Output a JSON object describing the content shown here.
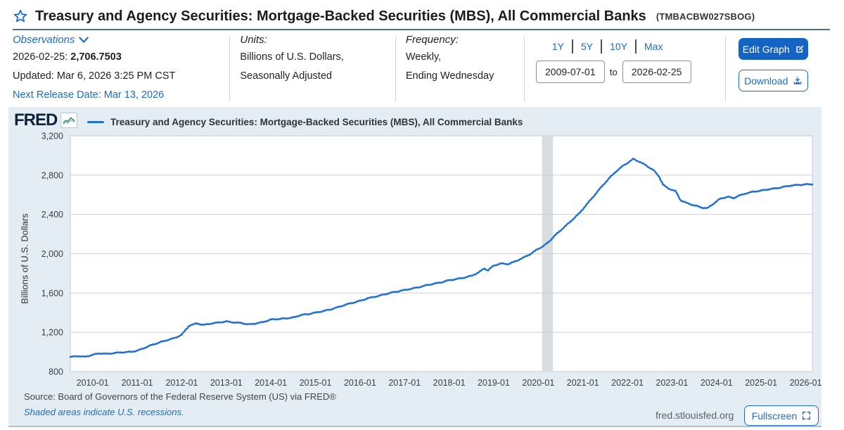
{
  "header": {
    "title": "Treasury and Agency Securities: Mortgage-Backed Securities (MBS), All Commercial Banks",
    "series_id": "(TMBACBW027SBOG)"
  },
  "meta": {
    "observations": {
      "label": "Observations",
      "latest_date": "2026-02-25:",
      "latest_value": "2,706.7503",
      "updated": "Updated: Mar 6, 2026 3:25 PM CST",
      "next_release": "Next Release Date: Mar 13, 2026"
    },
    "units": {
      "label": "Units:",
      "line1": "Billions of U.S. Dollars,",
      "line2": "Seasonally Adjusted"
    },
    "frequency": {
      "label": "Frequency:",
      "line1": "Weekly,",
      "line2": "Ending Wednesday"
    },
    "range": {
      "presets": [
        "1Y",
        "5Y",
        "10Y",
        "Max"
      ],
      "start": "2009-07-01",
      "to_label": "to",
      "end": "2026-02-25"
    },
    "actions": {
      "edit": "Edit Graph",
      "download": "Download"
    }
  },
  "graph": {
    "brand": "FRED",
    "legend": "Treasury and Agency Securities: Mortgage-Backed Securities (MBS), All Commercial Banks",
    "source": "Source: Board of Governors of the Federal Reserve System (US) via FRED®",
    "recession_note": "Shaded areas indicate U.S. recessions.",
    "site": "fred.stlouisfed.org",
    "fullscreen": "Fullscreen"
  },
  "chart_data": {
    "type": "line",
    "title": "Treasury and Agency Securities: Mortgage-Backed Securities (MBS), All Commercial Banks",
    "ylabel": "Billions of U.S. Dollars",
    "xlabel": "",
    "x_range": [
      "2009-07-01",
      "2026-02-25"
    ],
    "ylim": [
      800,
      3200
    ],
    "y_ticks": [
      800,
      1200,
      1600,
      2000,
      2400,
      2800,
      3200
    ],
    "x_ticks": [
      "2010-01",
      "2011-01",
      "2012-01",
      "2013-01",
      "2014-01",
      "2015-01",
      "2016-01",
      "2017-01",
      "2018-01",
      "2019-01",
      "2020-01",
      "2021-01",
      "2022-01",
      "2023-01",
      "2024-01",
      "2025-01",
      "2026-01"
    ],
    "line_color": "#1f6fd0",
    "recession_color": "#d8dde2",
    "grid": true,
    "legend_position": "top",
    "recessions": [
      {
        "start": "2020-02-01",
        "end": "2020-04-30"
      }
    ],
    "series": [
      {
        "name": "Treasury and Agency Securities: Mortgage-Backed Securities (MBS), All Commercial Banks",
        "points": [
          [
            "2009-07-01",
            948
          ],
          [
            "2009-09-01",
            958
          ],
          [
            "2009-11-01",
            950
          ],
          [
            "2010-01-01",
            972
          ],
          [
            "2010-03-01",
            986
          ],
          [
            "2010-05-01",
            980
          ],
          [
            "2010-07-01",
            990
          ],
          [
            "2010-09-01",
            996
          ],
          [
            "2010-11-01",
            1000
          ],
          [
            "2011-01-01",
            1012
          ],
          [
            "2011-03-01",
            1042
          ],
          [
            "2011-05-01",
            1072
          ],
          [
            "2011-07-01",
            1096
          ],
          [
            "2011-09-01",
            1120
          ],
          [
            "2011-11-01",
            1140
          ],
          [
            "2012-01-01",
            1175
          ],
          [
            "2012-03-01",
            1268
          ],
          [
            "2012-05-01",
            1290
          ],
          [
            "2012-07-01",
            1275
          ],
          [
            "2012-09-01",
            1290
          ],
          [
            "2012-11-01",
            1300
          ],
          [
            "2013-01-01",
            1310
          ],
          [
            "2013-03-01",
            1300
          ],
          [
            "2013-05-01",
            1295
          ],
          [
            "2013-07-01",
            1280
          ],
          [
            "2013-09-01",
            1290
          ],
          [
            "2013-11-01",
            1305
          ],
          [
            "2014-01-01",
            1330
          ],
          [
            "2014-04-01",
            1338
          ],
          [
            "2014-07-01",
            1350
          ],
          [
            "2014-09-01",
            1375
          ],
          [
            "2014-11-01",
            1385
          ],
          [
            "2015-01-01",
            1400
          ],
          [
            "2015-03-01",
            1415
          ],
          [
            "2015-05-01",
            1432
          ],
          [
            "2015-07-01",
            1455
          ],
          [
            "2015-09-01",
            1480
          ],
          [
            "2015-11-01",
            1500
          ],
          [
            "2016-01-01",
            1520
          ],
          [
            "2016-03-01",
            1545
          ],
          [
            "2016-05-01",
            1562
          ],
          [
            "2016-07-01",
            1580
          ],
          [
            "2016-09-01",
            1600
          ],
          [
            "2016-11-01",
            1615
          ],
          [
            "2017-01-01",
            1630
          ],
          [
            "2017-03-01",
            1645
          ],
          [
            "2017-05-01",
            1660
          ],
          [
            "2017-07-01",
            1680
          ],
          [
            "2017-09-01",
            1695
          ],
          [
            "2017-11-01",
            1710
          ],
          [
            "2018-01-01",
            1730
          ],
          [
            "2018-03-01",
            1742
          ],
          [
            "2018-05-01",
            1756
          ],
          [
            "2018-07-01",
            1775
          ],
          [
            "2018-09-01",
            1810
          ],
          [
            "2018-10-15",
            1850
          ],
          [
            "2018-11-15",
            1830
          ],
          [
            "2019-01-01",
            1880
          ],
          [
            "2019-03-01",
            1900
          ],
          [
            "2019-05-01",
            1895
          ],
          [
            "2019-07-01",
            1925
          ],
          [
            "2019-09-01",
            1960
          ],
          [
            "2019-11-01",
            2000
          ],
          [
            "2020-01-01",
            2050
          ],
          [
            "2020-02-15",
            2080
          ],
          [
            "2020-03-15",
            2110
          ],
          [
            "2020-04-15",
            2145
          ],
          [
            "2020-06-01",
            2205
          ],
          [
            "2020-08-01",
            2270
          ],
          [
            "2020-10-01",
            2340
          ],
          [
            "2020-12-01",
            2410
          ],
          [
            "2021-02-01",
            2500
          ],
          [
            "2021-04-01",
            2590
          ],
          [
            "2021-06-01",
            2680
          ],
          [
            "2021-08-01",
            2765
          ],
          [
            "2021-10-01",
            2840
          ],
          [
            "2021-12-01",
            2900
          ],
          [
            "2022-01-15",
            2935
          ],
          [
            "2022-02-20",
            2965
          ],
          [
            "2022-04-01",
            2940
          ],
          [
            "2022-06-01",
            2900
          ],
          [
            "2022-08-01",
            2850
          ],
          [
            "2022-09-15",
            2790
          ],
          [
            "2022-10-20",
            2700
          ],
          [
            "2022-12-01",
            2665
          ],
          [
            "2023-02-01",
            2635
          ],
          [
            "2023-03-10",
            2545
          ],
          [
            "2023-05-01",
            2515
          ],
          [
            "2023-07-01",
            2492
          ],
          [
            "2023-09-01",
            2470
          ],
          [
            "2023-10-15",
            2462
          ],
          [
            "2023-12-01",
            2505
          ],
          [
            "2024-02-01",
            2560
          ],
          [
            "2024-04-01",
            2580
          ],
          [
            "2024-05-15",
            2565
          ],
          [
            "2024-07-01",
            2590
          ],
          [
            "2024-09-01",
            2615
          ],
          [
            "2024-11-01",
            2632
          ],
          [
            "2025-01-01",
            2642
          ],
          [
            "2025-03-01",
            2656
          ],
          [
            "2025-05-01",
            2666
          ],
          [
            "2025-07-01",
            2680
          ],
          [
            "2025-09-01",
            2694
          ],
          [
            "2025-11-01",
            2700
          ],
          [
            "2026-01-01",
            2706
          ],
          [
            "2026-02-25",
            2706.7503
          ]
        ]
      }
    ]
  }
}
